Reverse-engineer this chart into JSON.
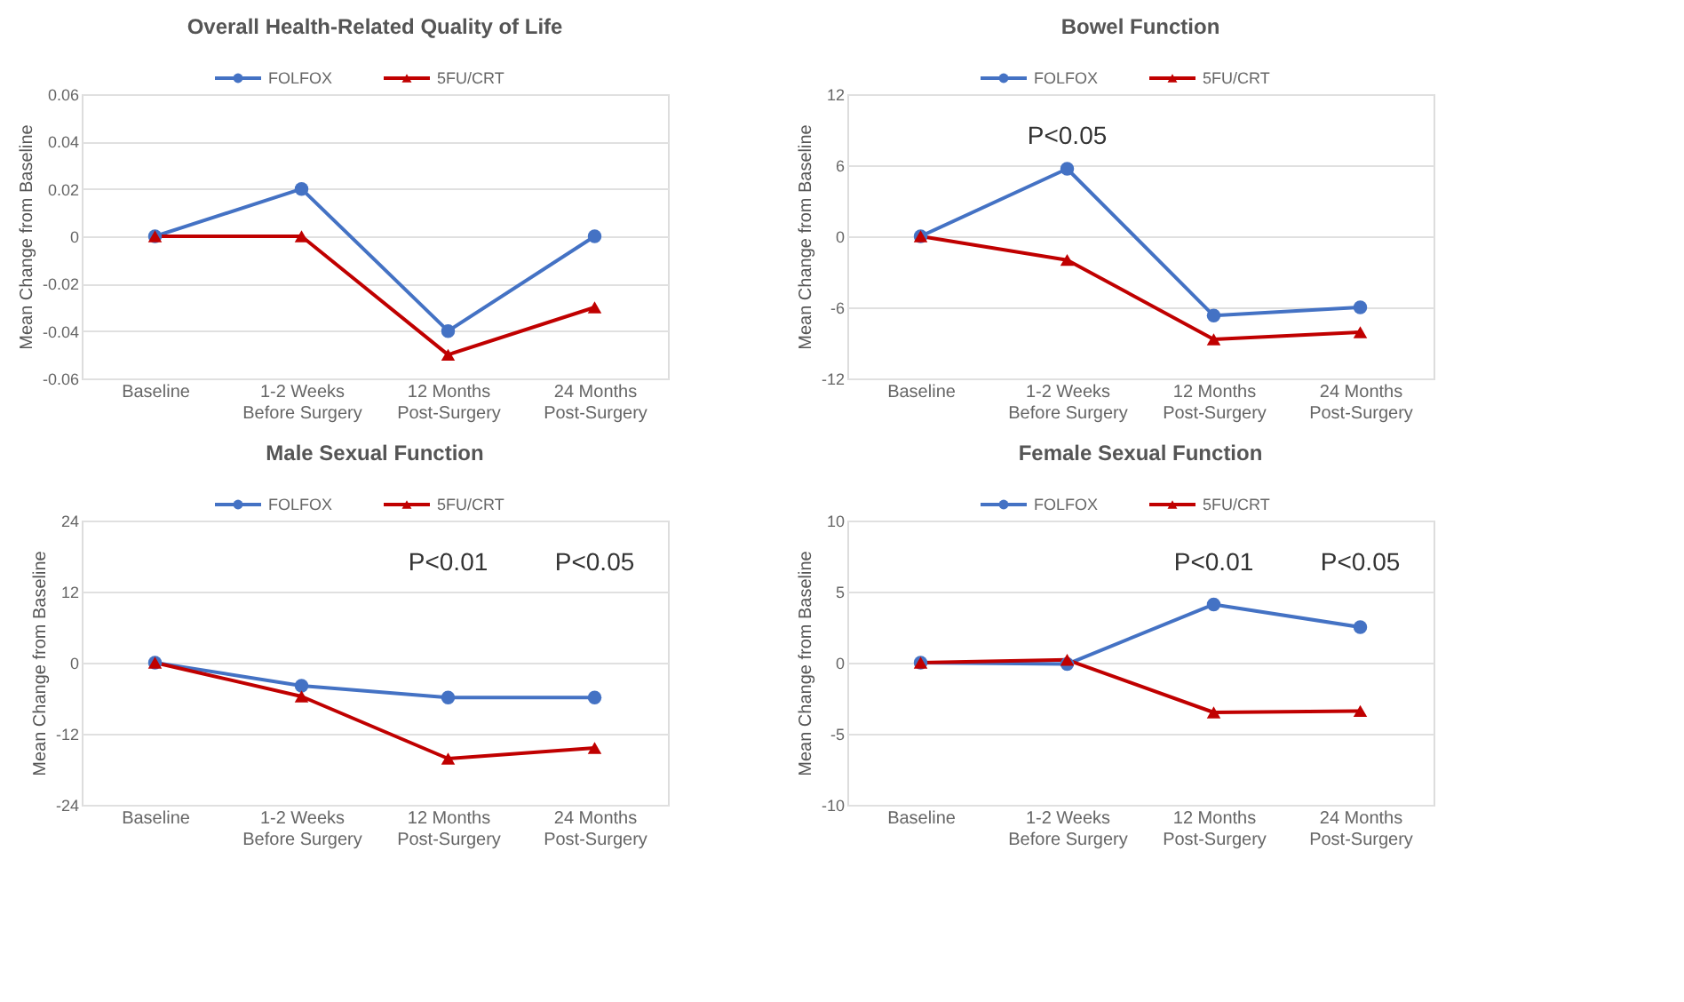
{
  "chart_data": [
    {
      "type": "line",
      "title": "Overall Health-Related Quality of Life",
      "ylabel": "Mean Change from Baseline",
      "categories": [
        "Baseline",
        "1-2 Weeks\nBefore Surgery",
        "12 Months\nPost-Surgery",
        "24 Months\nPost-Surgery"
      ],
      "ylim": [
        -0.06,
        0.06
      ],
      "yticks": [
        -0.06,
        -0.04,
        -0.02,
        0,
        0.02,
        0.04,
        0.06
      ],
      "grid": "y",
      "legend": "top",
      "line_style": "solid",
      "series": [
        {
          "name": "FOLFOX",
          "color": "#4472c4",
          "marker": "circle",
          "values": [
            0,
            0.02,
            -0.04,
            0
          ]
        },
        {
          "name": "5FU/CRT",
          "color": "#c00000",
          "marker": "triangle",
          "values": [
            0,
            0,
            -0.05,
            -0.03
          ]
        }
      ]
    },
    {
      "type": "line",
      "title": "Bowel Function",
      "ylabel": "Mean Change from Baseline",
      "categories": [
        "Baseline",
        "1-2 Weeks\nBefore Surgery",
        "12 Months\nPost-Surgery",
        "24 Months\nPost-Surgery"
      ],
      "ylim": [
        -12,
        12
      ],
      "yticks": [
        -12,
        -6,
        0,
        6,
        12
      ],
      "grid": "y",
      "legend": "top",
      "line_style": "solid",
      "annotations": [
        "P<0.05"
      ],
      "series": [
        {
          "name": "FOLFOX",
          "color": "#4472c4",
          "marker": "circle",
          "values": [
            0,
            5.7,
            -6.7,
            -6.0
          ]
        },
        {
          "name": "5FU/CRT",
          "color": "#c00000",
          "marker": "triangle",
          "values": [
            0,
            -2.0,
            -8.7,
            -8.1
          ]
        }
      ]
    },
    {
      "type": "line",
      "title": "Male Sexual Function",
      "ylabel": "Mean Change from Baseline",
      "categories": [
        "Baseline",
        "1-2 Weeks\nBefore Surgery",
        "12 Months\nPost-Surgery",
        "24 Months\nPost-Surgery"
      ],
      "ylim": [
        -24,
        24
      ],
      "yticks": [
        -24,
        -12,
        0,
        12,
        24
      ],
      "grid": "y",
      "legend": "top",
      "line_style": "solid",
      "annotations": [
        "P<0.01",
        "P<0.05"
      ],
      "series": [
        {
          "name": "FOLFOX",
          "color": "#4472c4",
          "marker": "circle",
          "values": [
            0,
            -3.9,
            -5.9,
            -5.9
          ]
        },
        {
          "name": "5FU/CRT",
          "color": "#c00000",
          "marker": "triangle",
          "values": [
            0,
            -5.7,
            -16.2,
            -14.4
          ]
        }
      ]
    },
    {
      "type": "line",
      "title": "Female Sexual Function",
      "ylabel": "Mean Change from Baseline",
      "categories": [
        "Baseline",
        "1-2 Weeks\nBefore Surgery",
        "12 Months\nPost-Surgery",
        "24 Months\nPost-Surgery"
      ],
      "ylim": [
        -10,
        10
      ],
      "yticks": [
        -10,
        -5,
        0,
        5,
        10
      ],
      "grid": "y",
      "legend": "top",
      "line_style": "solid",
      "annotations": [
        "P<0.01",
        "P<0.05"
      ],
      "series": [
        {
          "name": "FOLFOX",
          "color": "#4472c4",
          "marker": "circle",
          "values": [
            0,
            -0.1,
            4.1,
            2.5
          ]
        },
        {
          "name": "5FU/CRT",
          "color": "#c00000",
          "marker": "triangle",
          "values": [
            0,
            0.2,
            -3.5,
            -3.4
          ]
        }
      ]
    }
  ]
}
